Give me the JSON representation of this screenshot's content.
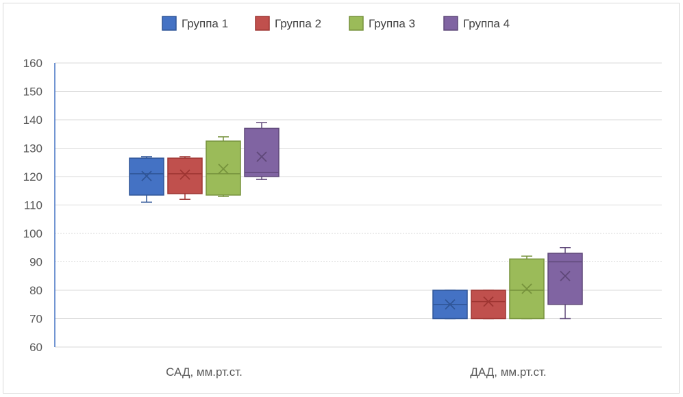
{
  "chart_data": {
    "type": "boxplot",
    "categories": [
      "САД, мм.рт.ст.",
      "ДАД, мм.рт.ст."
    ],
    "ylim": [
      60,
      160
    ],
    "yticks": [
      60,
      70,
      80,
      90,
      100,
      110,
      120,
      130,
      140,
      150,
      160
    ],
    "grid": true,
    "legend_position": "top",
    "series": [
      {
        "name": "Группа 1",
        "color": "#4472c4",
        "border": "#2f5597",
        "boxes": [
          {
            "min": 111,
            "q1": 113.5,
            "median": 121,
            "q3": 126.5,
            "max": 127,
            "mean": 120.2
          },
          {
            "min": 70,
            "q1": 70,
            "median": 75,
            "q3": 80,
            "max": 80,
            "mean": 75
          }
        ]
      },
      {
        "name": "Группа 2",
        "color": "#c0504d",
        "border": "#9e3532",
        "boxes": [
          {
            "min": 112,
            "q1": 114,
            "median": 121,
            "q3": 126.5,
            "max": 127,
            "mean": 120.7
          },
          {
            "min": 70,
            "q1": 70,
            "median": 76,
            "q3": 80,
            "max": 80,
            "mean": 76
          }
        ]
      },
      {
        "name": "Группа 3",
        "color": "#9bbb59",
        "border": "#76923c",
        "boxes": [
          {
            "min": 113,
            "q1": 113.5,
            "median": 121,
            "q3": 132.5,
            "max": 134,
            "mean": 122.7
          },
          {
            "min": 70,
            "q1": 70,
            "median": 80,
            "q3": 91,
            "max": 92,
            "mean": 80.5
          }
        ]
      },
      {
        "name": "Группа 4",
        "color": "#8064a2",
        "border": "#5f4879",
        "boxes": [
          {
            "min": 119,
            "q1": 120,
            "median": 121.5,
            "q3": 137,
            "max": 139,
            "mean": 127
          },
          {
            "min": 70,
            "q1": 75,
            "median": 90,
            "q3": 93,
            "max": 95,
            "mean": 85
          }
        ]
      }
    ]
  }
}
